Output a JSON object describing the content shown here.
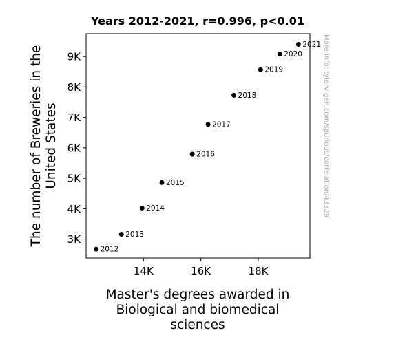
{
  "chart_data": {
    "type": "scatter",
    "title": "Years 2012-2021, r=0.996, p<0.01",
    "xlabel": [
      "Master's degrees awarded in",
      "Biological and biomedical",
      "sciences"
    ],
    "ylabel": [
      "The number of Breweries in the",
      "United States"
    ],
    "xlim": [
      12000,
      19800
    ],
    "ylim": [
      2380,
      9750
    ],
    "x_ticks": [
      {
        "value": 14000,
        "label": "14K"
      },
      {
        "value": 16000,
        "label": "16K"
      },
      {
        "value": 18000,
        "label": "18K"
      }
    ],
    "y_ticks": [
      {
        "value": 3000,
        "label": "3K"
      },
      {
        "value": 4000,
        "label": "4K"
      },
      {
        "value": 5000,
        "label": "5K"
      },
      {
        "value": 6000,
        "label": "6K"
      },
      {
        "value": 7000,
        "label": "7K"
      },
      {
        "value": 8000,
        "label": "8K"
      },
      {
        "value": 9000,
        "label": "9K"
      }
    ],
    "points": [
      {
        "label": "2012",
        "x": 12350,
        "y": 2670
      },
      {
        "label": "2013",
        "x": 13230,
        "y": 3160
      },
      {
        "label": "2014",
        "x": 13950,
        "y": 4020
      },
      {
        "label": "2015",
        "x": 14640,
        "y": 4860
      },
      {
        "label": "2016",
        "x": 15700,
        "y": 5790
      },
      {
        "label": "2017",
        "x": 16250,
        "y": 6770
      },
      {
        "label": "2018",
        "x": 17150,
        "y": 7730
      },
      {
        "label": "2019",
        "x": 18080,
        "y": 8570
      },
      {
        "label": "2020",
        "x": 18750,
        "y": 9080
      },
      {
        "label": "2021",
        "x": 19400,
        "y": 9400
      }
    ],
    "grid": false,
    "point_color": "#000000",
    "watermark": "More info: tylervigen.com/spurious/correlation/43329"
  }
}
